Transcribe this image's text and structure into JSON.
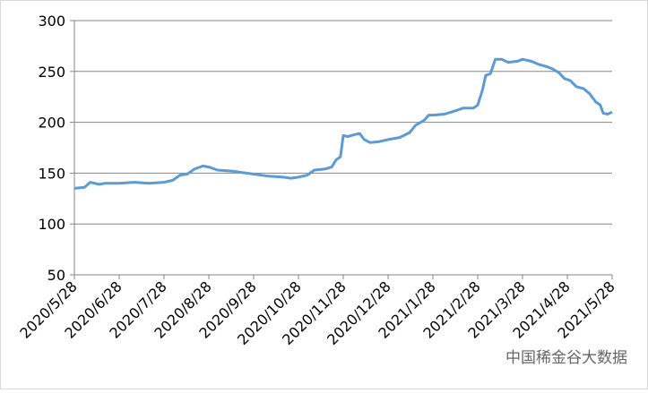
{
  "chart_data": {
    "type": "line",
    "x": [
      "2020/5/28",
      "2020/6/4",
      "2020/6/8",
      "2020/6/14",
      "2020/6/18",
      "2020/6/28",
      "2020/7/8",
      "2020/7/18",
      "2020/7/28",
      "2020/8/3",
      "2020/8/8",
      "2020/8/13",
      "2020/8/18",
      "2020/8/24",
      "2020/8/28",
      "2020/9/3",
      "2020/9/13",
      "2020/9/23",
      "2020/9/28",
      "2020/10/8",
      "2020/10/18",
      "2020/10/23",
      "2020/10/28",
      "2020/11/3",
      "2020/11/8",
      "2020/11/15",
      "2020/11/20",
      "2020/11/23",
      "2020/11/26",
      "2020/11/28",
      "2020/12/1",
      "2020/12/6",
      "2020/12/9",
      "2020/12/12",
      "2020/12/16",
      "2020/12/22",
      "2020/12/28",
      "2021/1/5",
      "2021/1/12",
      "2021/1/16",
      "2021/1/22",
      "2021/1/25",
      "2021/1/28",
      "2021/2/5",
      "2021/2/12",
      "2021/2/18",
      "2021/2/25",
      "2021/2/28",
      "2021/3/3",
      "2021/3/5",
      "2021/3/8",
      "2021/3/11",
      "2021/3/15",
      "2021/3/19",
      "2021/3/25",
      "2021/3/28",
      "2021/4/3",
      "2021/4/8",
      "2021/4/13",
      "2021/4/17",
      "2021/4/22",
      "2021/4/26",
      "2021/4/30",
      "2021/5/4",
      "2021/5/9",
      "2021/5/13",
      "2021/5/17",
      "2021/5/20",
      "2021/5/22",
      "2021/5/25",
      "2021/5/28"
    ],
    "series": [
      {
        "color": "#5b9bd5",
        "values": [
          135,
          136,
          141,
          139,
          140,
          140,
          141,
          140,
          141,
          143,
          148,
          149,
          154,
          157,
          156,
          153,
          152,
          150,
          149,
          147,
          146,
          145,
          146,
          148,
          153,
          154,
          156,
          163,
          166,
          187,
          186,
          188,
          189,
          183,
          180,
          181,
          183,
          185,
          190,
          197,
          202,
          207,
          207,
          208,
          211,
          214,
          214,
          217,
          232,
          246,
          248,
          262,
          262,
          259,
          260,
          262,
          260,
          257,
          255,
          253,
          249,
          243,
          241,
          235,
          233,
          228,
          220,
          217,
          209,
          208,
          210
        ]
      }
    ],
    "xticks": [
      "2020/5/28",
      "2020/6/28",
      "2020/7/28",
      "2020/8/28",
      "2020/9/28",
      "2020/10/28",
      "2020/11/28",
      "2020/12/28",
      "2021/1/28",
      "2021/2/28",
      "2021/3/28",
      "2021/4/28",
      "2021/5/28"
    ],
    "ylim": [
      50,
      300
    ],
    "yticks": [
      50,
      100,
      150,
      200,
      250,
      300
    ],
    "grid": true,
    "watermark": "中国稀金谷大数据"
  }
}
